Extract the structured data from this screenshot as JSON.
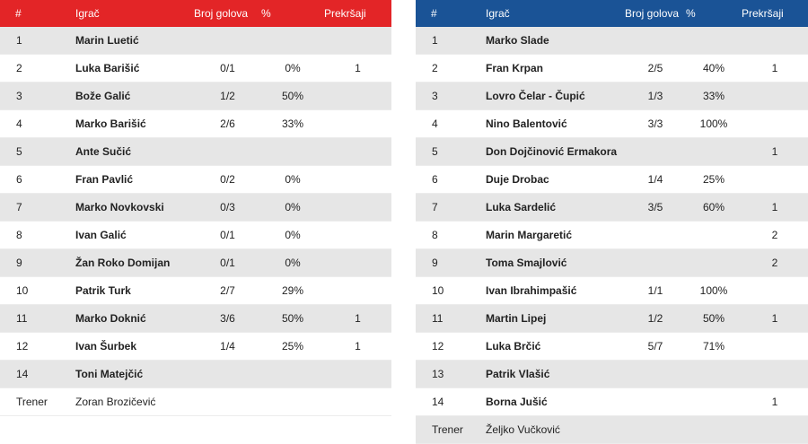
{
  "headers": {
    "number": "#",
    "player": "Igrač",
    "goals": "Broj golova",
    "percent": "%",
    "fouls": "Prekršaji"
  },
  "colors": {
    "home_header": "#e32527",
    "away_header": "#1a5396",
    "row_shade": "#e6e6e6"
  },
  "home": {
    "players": [
      {
        "number": "1",
        "name": "Marin Luetić",
        "goals": "",
        "percent": "",
        "fouls": ""
      },
      {
        "number": "2",
        "name": "Luka Barišić",
        "goals": "0/1",
        "percent": "0%",
        "fouls": "1"
      },
      {
        "number": "3",
        "name": "Bože Galić",
        "goals": "1/2",
        "percent": "50%",
        "fouls": ""
      },
      {
        "number": "4",
        "name": "Marko Barišić",
        "goals": "2/6",
        "percent": "33%",
        "fouls": ""
      },
      {
        "number": "5",
        "name": "Ante Sučić",
        "goals": "",
        "percent": "",
        "fouls": ""
      },
      {
        "number": "6",
        "name": "Fran Pavlić",
        "goals": "0/2",
        "percent": "0%",
        "fouls": ""
      },
      {
        "number": "7",
        "name": "Marko Novkovski",
        "goals": "0/3",
        "percent": "0%",
        "fouls": ""
      },
      {
        "number": "8",
        "name": "Ivan Galić",
        "goals": "0/1",
        "percent": "0%",
        "fouls": ""
      },
      {
        "number": "9",
        "name": "Žan Roko Domijan",
        "goals": "0/1",
        "percent": "0%",
        "fouls": ""
      },
      {
        "number": "10",
        "name": "Patrik Turk",
        "goals": "2/7",
        "percent": "29%",
        "fouls": ""
      },
      {
        "number": "11",
        "name": "Marko Doknić",
        "goals": "3/6",
        "percent": "50%",
        "fouls": "1"
      },
      {
        "number": "12",
        "name": "Ivan Šurbek",
        "goals": "1/4",
        "percent": "25%",
        "fouls": "1"
      },
      {
        "number": "14",
        "name": "Toni Matejčić",
        "goals": "",
        "percent": "",
        "fouls": ""
      }
    ],
    "coach": {
      "label": "Trener",
      "name": "Zoran Brozičević"
    }
  },
  "away": {
    "players": [
      {
        "number": "1",
        "name": "Marko Slade",
        "goals": "",
        "percent": "",
        "fouls": ""
      },
      {
        "number": "2",
        "name": "Fran Krpan",
        "goals": "2/5",
        "percent": "40%",
        "fouls": "1"
      },
      {
        "number": "3",
        "name": "Lovro Čelar - Čupić",
        "goals": "1/3",
        "percent": "33%",
        "fouls": ""
      },
      {
        "number": "4",
        "name": "Nino Balentović",
        "goals": "3/3",
        "percent": "100%",
        "fouls": ""
      },
      {
        "number": "5",
        "name": "Don Dojčinović Ermakora",
        "goals": "",
        "percent": "",
        "fouls": "1"
      },
      {
        "number": "6",
        "name": "Duje Drobac",
        "goals": "1/4",
        "percent": "25%",
        "fouls": ""
      },
      {
        "number": "7",
        "name": "Luka Sardelić",
        "goals": "3/5",
        "percent": "60%",
        "fouls": "1"
      },
      {
        "number": "8",
        "name": "Marin Margaretić",
        "goals": "",
        "percent": "",
        "fouls": "2"
      },
      {
        "number": "9",
        "name": "Toma Smajlović",
        "goals": "",
        "percent": "",
        "fouls": "2"
      },
      {
        "number": "10",
        "name": "Ivan Ibrahimpašić",
        "goals": "1/1",
        "percent": "100%",
        "fouls": ""
      },
      {
        "number": "11",
        "name": "Martin Lipej",
        "goals": "1/2",
        "percent": "50%",
        "fouls": "1"
      },
      {
        "number": "12",
        "name": "Luka Brčić",
        "goals": "5/7",
        "percent": "71%",
        "fouls": ""
      },
      {
        "number": "13",
        "name": "Patrik Vlašić",
        "goals": "",
        "percent": "",
        "fouls": ""
      },
      {
        "number": "14",
        "name": "Borna Jušić",
        "goals": "",
        "percent": "",
        "fouls": "1"
      }
    ],
    "coach": {
      "label": "Trener",
      "name": "Željko Vučković"
    }
  }
}
